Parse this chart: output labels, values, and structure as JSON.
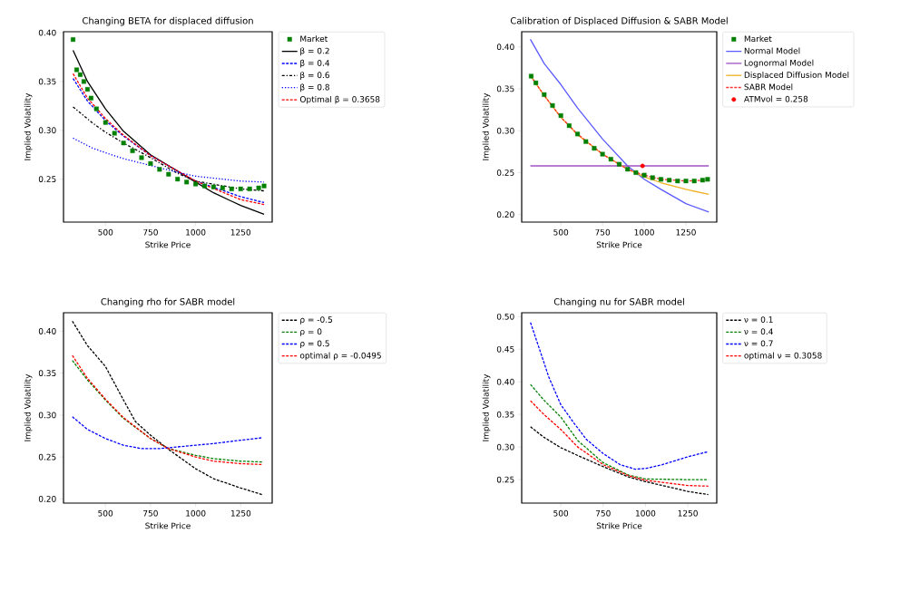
{
  "chart_data": [
    {
      "type": "line",
      "title": "Changing BETA for displaced diffusion",
      "xlabel": "Strike Price",
      "ylabel": "Implied Volatility",
      "xlim": [
        267,
        1425
      ],
      "ylim": [
        0.206,
        0.401
      ],
      "xticks": [
        500,
        750,
        1000,
        1250
      ],
      "yticks": [
        {
          "value": 0.25,
          "label": "0.25"
        },
        {
          "value": 0.3,
          "label": "0.30"
        },
        {
          "value": 0.35,
          "label": "0.35"
        },
        {
          "value": 0.4,
          "label": "0.40"
        }
      ],
      "legend": "top right",
      "series": [
        {
          "name": "Market",
          "type": "scatter",
          "marker": "square",
          "color": "#008000",
          "x": [
            320,
            340,
            360,
            380,
            400,
            420,
            450,
            500,
            550,
            600,
            650,
            700,
            750,
            800,
            850,
            900,
            950,
            1000,
            1050,
            1100,
            1150,
            1200,
            1250,
            1300,
            1350,
            1380
          ],
          "values": [
            0.393,
            0.362,
            0.357,
            0.35,
            0.342,
            0.333,
            0.322,
            0.308,
            0.297,
            0.287,
            0.279,
            0.272,
            0.266,
            0.26,
            0.255,
            0.25,
            0.247,
            0.245,
            0.243,
            0.242,
            0.241,
            0.24,
            0.24,
            0.24,
            0.241,
            0.243
          ]
        },
        {
          "name": "β = 0.2",
          "line_style": "solid",
          "color": "#000000",
          "x": [
            320,
            400,
            500,
            600,
            750,
            1000,
            1100,
            1250,
            1380
          ],
          "values": [
            0.382,
            0.35,
            0.322,
            0.299,
            0.275,
            0.247,
            0.236,
            0.223,
            0.214
          ]
        },
        {
          "name": "β = 0.4",
          "line_style": "dashed",
          "color": "#0000ff",
          "x": [
            320,
            400,
            500,
            600,
            750,
            1000,
            1250,
            1380
          ],
          "values": [
            0.353,
            0.33,
            0.31,
            0.294,
            0.274,
            0.248,
            0.232,
            0.226
          ]
        },
        {
          "name": "β = 0.6",
          "line_style": "dashdot",
          "color": "#000000",
          "x": [
            320,
            425,
            500,
            600,
            750,
            900,
            1000,
            1250,
            1380
          ],
          "values": [
            0.324,
            0.308,
            0.298,
            0.287,
            0.272,
            0.256,
            0.248,
            0.24,
            0.238
          ]
        },
        {
          "name": "β = 0.8",
          "line_style": "dotted",
          "color": "#0000ff",
          "x": [
            320,
            425,
            500,
            600,
            750,
            900,
            1000,
            1250,
            1380
          ],
          "values": [
            0.292,
            0.282,
            0.277,
            0.271,
            0.264,
            0.257,
            0.253,
            0.248,
            0.247
          ]
        },
        {
          "name": "Optimal β = 0.3658",
          "line_style": "dashed",
          "color": "#ff0000",
          "x": [
            320,
            400,
            500,
            600,
            750,
            1000,
            1250,
            1380
          ],
          "values": [
            0.358,
            0.333,
            0.312,
            0.295,
            0.274,
            0.248,
            0.229,
            0.224
          ]
        }
      ]
    },
    {
      "type": "line",
      "title": "Calibration of Displaced Diffusion & SABR Model",
      "xlabel": "Strike Price",
      "ylabel": "Implied Volatility",
      "xlim": [
        265,
        1435
      ],
      "ylim": [
        0.191,
        0.418
      ],
      "xticks": [
        500,
        750,
        1000,
        1250
      ],
      "yticks": [
        {
          "value": 0.2,
          "label": "0.20"
        },
        {
          "value": 0.25,
          "label": "0.25"
        },
        {
          "value": 0.3,
          "label": "0.30"
        },
        {
          "value": 0.35,
          "label": "0.35"
        },
        {
          "value": 0.4,
          "label": "0.40"
        }
      ],
      "legend": "top right",
      "series": [
        {
          "name": "Market",
          "type": "scatter",
          "marker": "square",
          "color": "#008000",
          "x": [
            322,
            350,
            400,
            450,
            500,
            550,
            600,
            650,
            700,
            750,
            800,
            850,
            900,
            950,
            1000,
            1050,
            1100,
            1150,
            1200,
            1250,
            1300,
            1350,
            1380
          ],
          "values": [
            0.365,
            0.357,
            0.343,
            0.33,
            0.318,
            0.306,
            0.296,
            0.287,
            0.279,
            0.272,
            0.266,
            0.26,
            0.254,
            0.25,
            0.247,
            0.244,
            0.242,
            0.241,
            0.24,
            0.24,
            0.24,
            0.241,
            0.242
          ]
        },
        {
          "name": "Normal Model",
          "line_style": "solid",
          "color": "#5a5aff",
          "x": [
            317,
            400,
            500,
            600,
            750,
            900,
            1000,
            1100,
            1250,
            1387
          ],
          "values": [
            0.409,
            0.38,
            0.355,
            0.327,
            0.29,
            0.258,
            0.242,
            0.23,
            0.213,
            0.203
          ]
        },
        {
          "name": "Lognormal Model",
          "line_style": "solid",
          "color": "#a050c0",
          "x": [
            317,
            1387
          ],
          "values": [
            0.258,
            0.258
          ]
        },
        {
          "name": "Displaced Diffusion Model",
          "line_style": "solid",
          "color": "#f0b020",
          "x": [
            320,
            400,
            500,
            600,
            750,
            900,
            1000,
            1100,
            1250,
            1387
          ],
          "values": [
            0.365,
            0.342,
            0.316,
            0.295,
            0.272,
            0.254,
            0.245,
            0.238,
            0.23,
            0.224
          ]
        },
        {
          "name": "SABR Model",
          "line_style": "dashed",
          "color": "#ff3030",
          "x": [
            320,
            400,
            500,
            600,
            750,
            900,
            1000,
            1100,
            1250,
            1387
          ],
          "values": [
            0.365,
            0.342,
            0.316,
            0.296,
            0.272,
            0.254,
            0.247,
            0.242,
            0.24,
            0.241
          ]
        },
        {
          "name": "ATMvol = 0.258",
          "type": "scatter",
          "marker": "circle",
          "color": "#ff0000",
          "x": [
            990
          ],
          "values": [
            0.258
          ]
        }
      ]
    },
    {
      "type": "line",
      "title": "Changing rho for SABR model",
      "xlabel": "Strike Price",
      "ylabel": "Implied Volatility",
      "xlim": [
        268,
        1424
      ],
      "ylim": [
        0.195,
        0.422
      ],
      "xticks": [
        500,
        750,
        1000,
        1250
      ],
      "yticks": [
        {
          "value": 0.2,
          "label": "0.20"
        },
        {
          "value": 0.25,
          "label": "0.25"
        },
        {
          "value": 0.3,
          "label": "0.30"
        },
        {
          "value": 0.35,
          "label": "0.35"
        },
        {
          "value": 0.4,
          "label": "0.40"
        }
      ],
      "legend": "top right",
      "series": [
        {
          "name": "ρ = -0.5",
          "line_style": "dashed",
          "color": "#000000",
          "x": [
            317,
            400,
            500,
            600,
            667,
            750,
            850,
            1000,
            1100,
            1250,
            1371
          ],
          "values": [
            0.412,
            0.383,
            0.358,
            0.318,
            0.292,
            0.276,
            0.259,
            0.236,
            0.224,
            0.213,
            0.205
          ]
        },
        {
          "name": "ρ = 0",
          "line_style": "dashed",
          "color": "#008000",
          "x": [
            317,
            400,
            500,
            600,
            750,
            850,
            1000,
            1100,
            1250,
            1371
          ],
          "values": [
            0.365,
            0.342,
            0.318,
            0.296,
            0.272,
            0.26,
            0.252,
            0.248,
            0.245,
            0.244
          ]
        },
        {
          "name": "ρ = 0.5",
          "line_style": "dashed",
          "color": "#0000ff",
          "x": [
            317,
            400,
            500,
            600,
            700,
            800,
            900,
            1000,
            1100,
            1250,
            1371
          ],
          "values": [
            0.298,
            0.283,
            0.272,
            0.264,
            0.26,
            0.26,
            0.262,
            0.264,
            0.266,
            0.27,
            0.273
          ]
        },
        {
          "name": "optimal ρ = -0.0495",
          "line_style": "dashed",
          "color": "#ff0000",
          "x": [
            317,
            400,
            500,
            600,
            750,
            850,
            1000,
            1100,
            1250,
            1371
          ],
          "values": [
            0.371,
            0.344,
            0.319,
            0.297,
            0.272,
            0.26,
            0.25,
            0.245,
            0.242,
            0.241
          ]
        }
      ]
    },
    {
      "type": "line",
      "title": "Changing nu for SABR model",
      "xlabel": "Strike Price",
      "ylabel": "Implied Volatility",
      "xlim": [
        269,
        1421
      ],
      "ylim": [
        0.214,
        0.506
      ],
      "xticks": [
        500,
        750,
        1000,
        1250
      ],
      "yticks": [
        {
          "value": 0.25,
          "label": "0.25"
        },
        {
          "value": 0.3,
          "label": "0.30"
        },
        {
          "value": 0.35,
          "label": "0.35"
        },
        {
          "value": 0.4,
          "label": "0.40"
        },
        {
          "value": 0.45,
          "label": "0.45"
        },
        {
          "value": 0.5,
          "label": "0.50"
        }
      ],
      "legend": "top right",
      "series": [
        {
          "name": "ν = 0.1",
          "line_style": "dashed",
          "color": "#000000",
          "x": [
            321,
            400,
            500,
            600,
            750,
            900,
            1000,
            1250,
            1371
          ],
          "values": [
            0.331,
            0.315,
            0.299,
            0.287,
            0.27,
            0.254,
            0.247,
            0.232,
            0.227
          ]
        },
        {
          "name": "ν = 0.4",
          "line_style": "dashed",
          "color": "#008000",
          "x": [
            321,
            400,
            500,
            600,
            750,
            900,
            1000,
            1250,
            1371
          ],
          "values": [
            0.396,
            0.372,
            0.346,
            0.31,
            0.276,
            0.257,
            0.251,
            0.25,
            0.25
          ]
        },
        {
          "name": "ν = 0.7",
          "line_style": "dashed",
          "color": "#0000ff",
          "x": [
            321,
            400,
            428,
            500,
            577,
            650,
            750,
            850,
            940,
            1000,
            1100,
            1250,
            1371
          ],
          "values": [
            0.491,
            0.43,
            0.408,
            0.365,
            0.337,
            0.312,
            0.29,
            0.273,
            0.266,
            0.267,
            0.273,
            0.285,
            0.293
          ]
        },
        {
          "name": "optimal ν = 0.3058",
          "line_style": "dashed",
          "color": "#ff0000",
          "x": [
            321,
            400,
            500,
            600,
            750,
            900,
            1000,
            1250,
            1371
          ],
          "values": [
            0.371,
            0.35,
            0.327,
            0.3,
            0.273,
            0.256,
            0.249,
            0.241,
            0.24
          ]
        }
      ]
    }
  ]
}
